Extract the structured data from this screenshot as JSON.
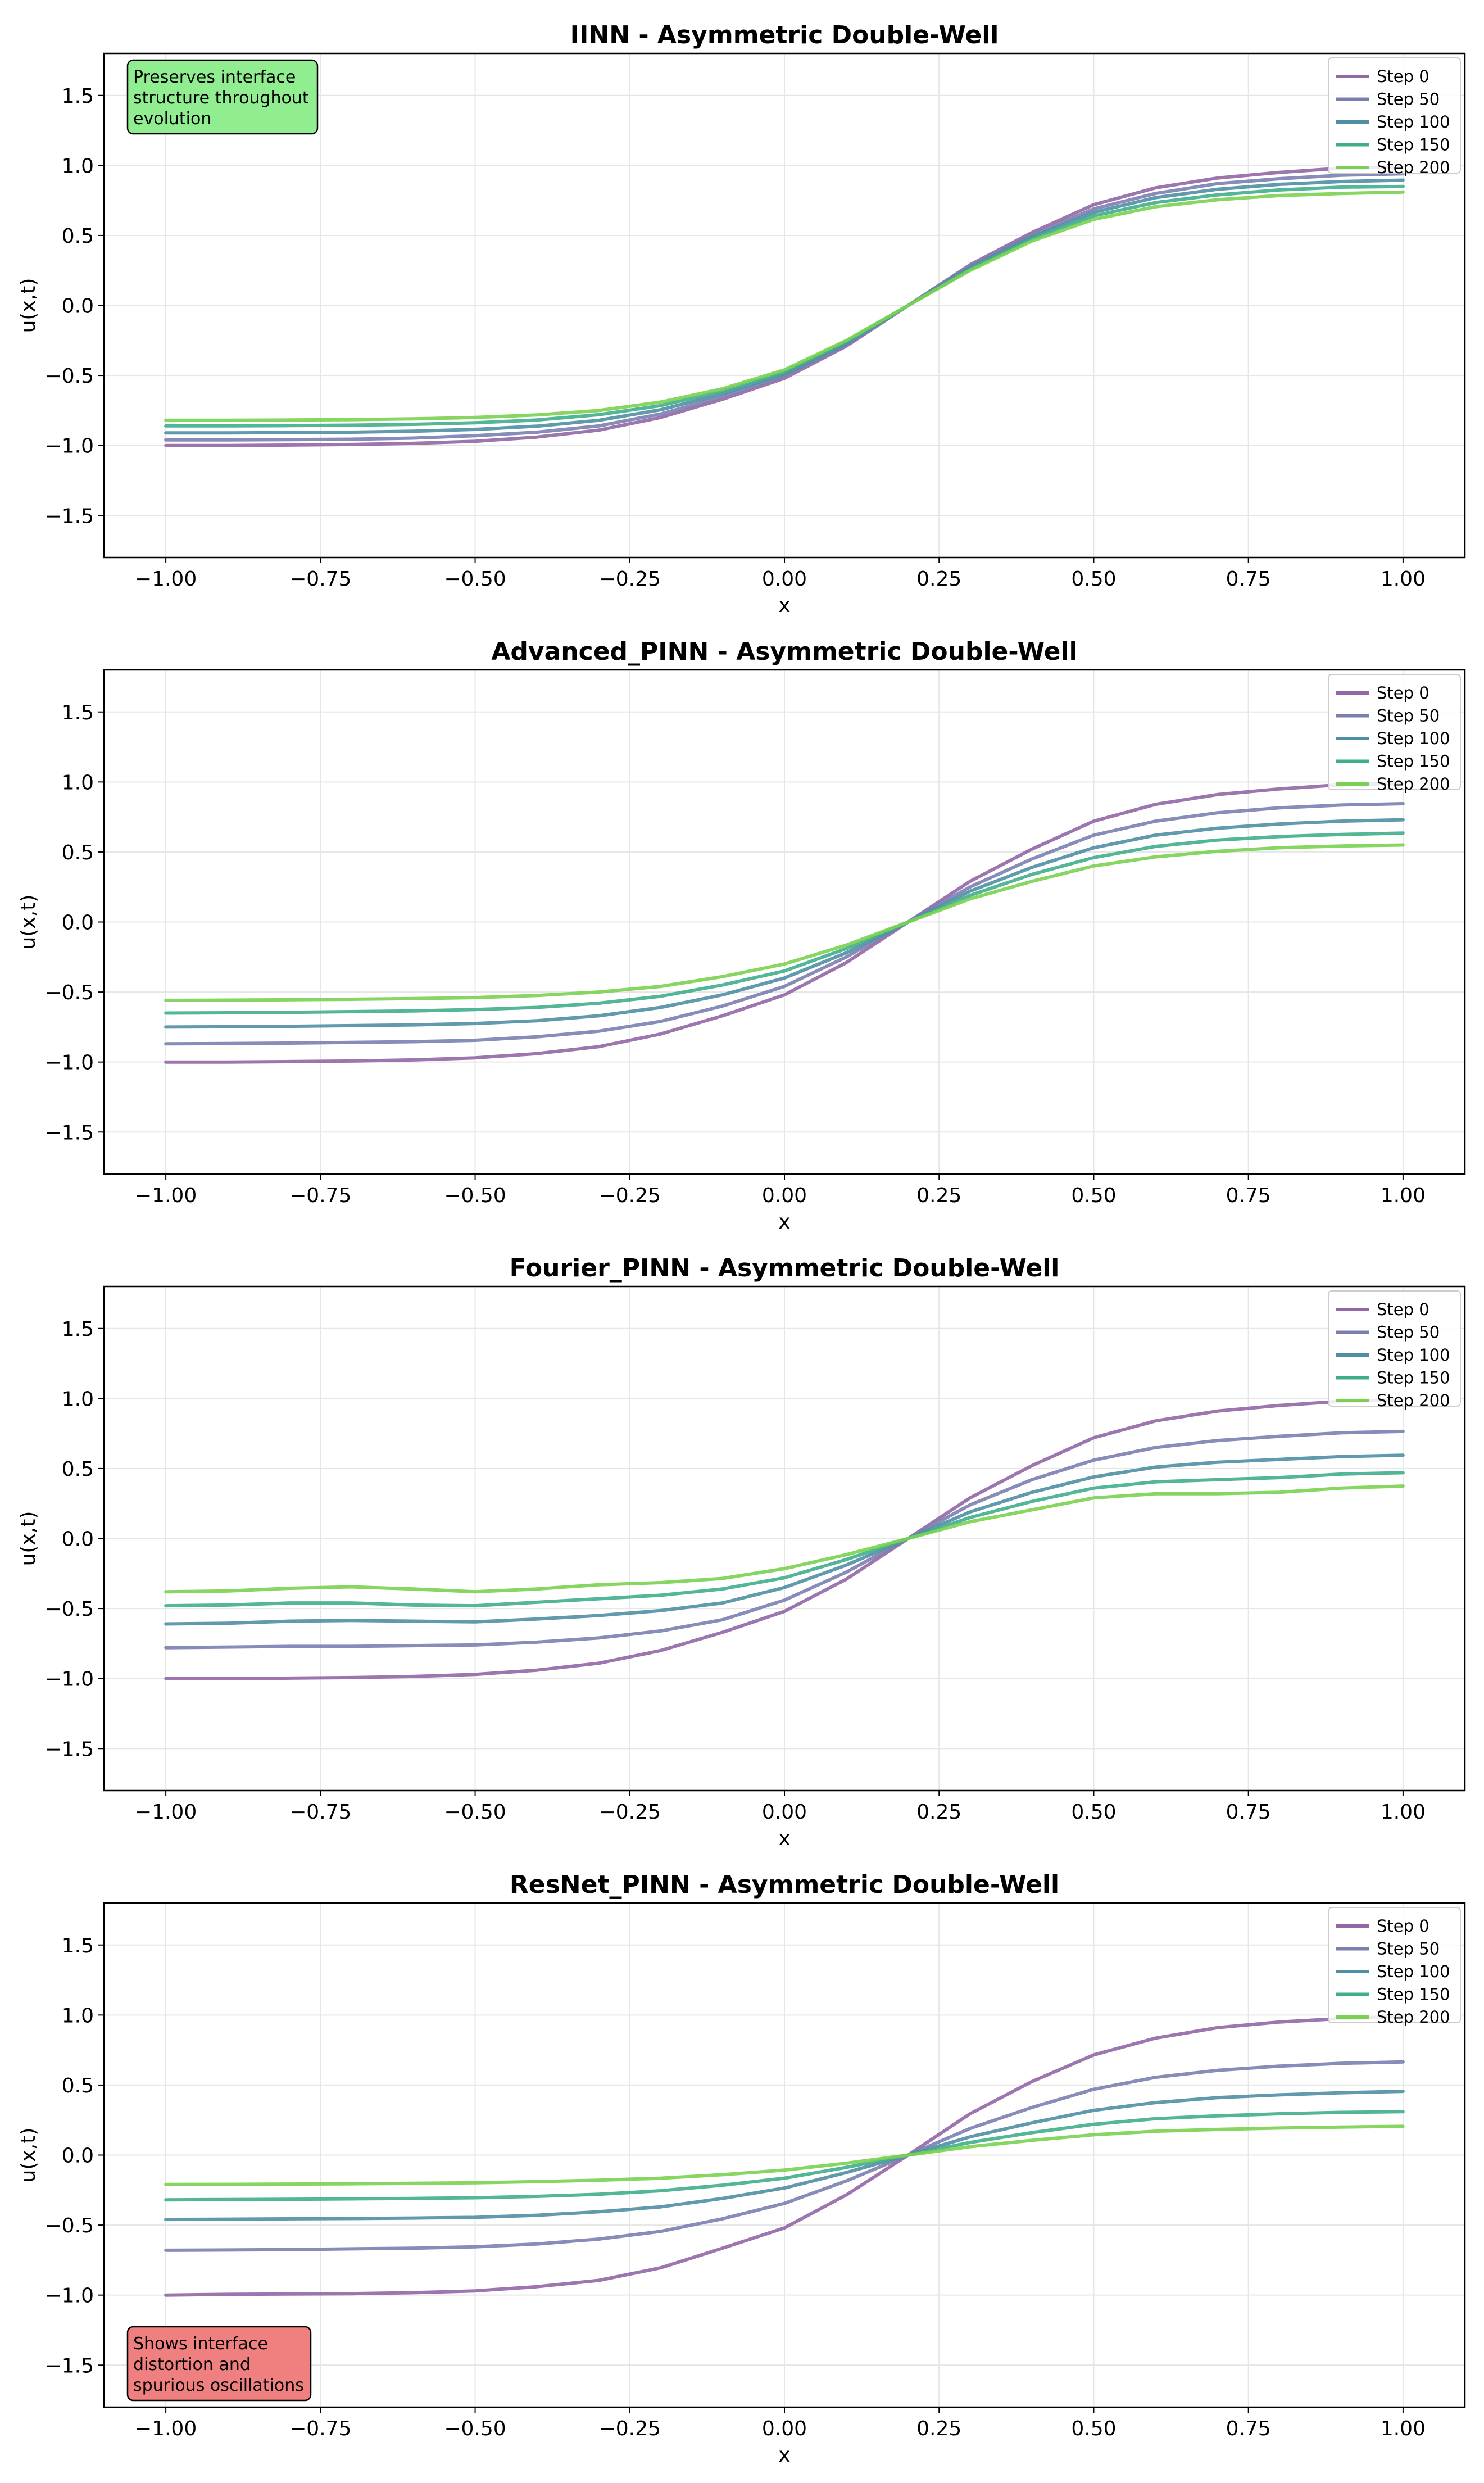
{
  "figure": {
    "style": {
      "background": "#ffffff",
      "grid_color": "#e6e6e6"
    }
  },
  "chart_data": [
    {
      "type": "line",
      "title": "IINN - Asymmetric Double-Well",
      "xlabel": "x",
      "ylabel": "u(x,t)",
      "xlim": [
        -1.1,
        1.1
      ],
      "ylim": [
        -1.8,
        1.8
      ],
      "xticks": [
        -1.0,
        -0.75,
        -0.5,
        -0.25,
        0.0,
        0.25,
        0.5,
        0.75,
        1.0
      ],
      "xtick_labels": [
        "−1.00",
        "−0.75",
        "−0.50",
        "−0.25",
        "0.00",
        "0.25",
        "0.50",
        "0.75",
        "1.00"
      ],
      "yticks": [
        -1.5,
        -1.0,
        -0.5,
        0.0,
        0.5,
        1.0,
        1.5
      ],
      "ytick_labels": [
        "−1.5",
        "−1.0",
        "−0.5",
        "0.0",
        "0.5",
        "1.0",
        "1.5"
      ],
      "grid": true,
      "legend": "top-right",
      "annotation": {
        "text": "Preserves interface\nstructure throughout\nevolution",
        "color": "#90ee90",
        "placement": "top-left"
      },
      "x": [
        -1.0,
        -0.9,
        -0.8,
        -0.7,
        -0.6,
        -0.5,
        -0.4,
        -0.3,
        -0.2,
        -0.1,
        0.0,
        0.1,
        0.2,
        0.3,
        0.4,
        0.5,
        0.6,
        0.7,
        0.8,
        0.9,
        1.0
      ],
      "series": [
        {
          "name": "Step 0",
          "color": "#9467a6",
          "values": [
            -1.0,
            -1.0,
            -0.997,
            -0.993,
            -0.985,
            -0.97,
            -0.94,
            -0.89,
            -0.8,
            -0.67,
            -0.52,
            -0.29,
            0.0,
            0.29,
            0.52,
            0.72,
            0.84,
            0.91,
            0.95,
            0.98,
            0.99
          ]
        },
        {
          "name": "Step 50",
          "color": "#7b7fb0",
          "values": [
            -0.96,
            -0.96,
            -0.958,
            -0.955,
            -0.947,
            -0.93,
            -0.905,
            -0.86,
            -0.775,
            -0.65,
            -0.505,
            -0.28,
            0.0,
            0.28,
            0.5,
            0.69,
            0.8,
            0.87,
            0.905,
            0.93,
            0.94
          ]
        },
        {
          "name": "Step 100",
          "color": "#4f8fa3",
          "values": [
            -0.91,
            -0.91,
            -0.908,
            -0.905,
            -0.898,
            -0.885,
            -0.862,
            -0.82,
            -0.745,
            -0.63,
            -0.49,
            -0.27,
            0.0,
            0.27,
            0.49,
            0.665,
            0.77,
            0.83,
            0.865,
            0.885,
            0.895
          ]
        },
        {
          "name": "Step 150",
          "color": "#3fae8c",
          "values": [
            -0.86,
            -0.86,
            -0.858,
            -0.855,
            -0.849,
            -0.838,
            -0.818,
            -0.78,
            -0.715,
            -0.61,
            -0.475,
            -0.26,
            0.0,
            0.26,
            0.475,
            0.64,
            0.735,
            0.79,
            0.825,
            0.845,
            0.85
          ]
        },
        {
          "name": "Step 200",
          "color": "#7ad151",
          "values": [
            -0.82,
            -0.82,
            -0.818,
            -0.815,
            -0.81,
            -0.8,
            -0.782,
            -0.75,
            -0.69,
            -0.595,
            -0.46,
            -0.25,
            0.0,
            0.25,
            0.46,
            0.615,
            0.705,
            0.755,
            0.785,
            0.8,
            0.81
          ]
        }
      ]
    },
    {
      "type": "line",
      "title": "Advanced_PINN - Asymmetric Double-Well",
      "xlabel": "x",
      "ylabel": "u(x,t)",
      "xlim": [
        -1.1,
        1.1
      ],
      "ylim": [
        -1.8,
        1.8
      ],
      "xticks": [
        -1.0,
        -0.75,
        -0.5,
        -0.25,
        0.0,
        0.25,
        0.5,
        0.75,
        1.0
      ],
      "xtick_labels": [
        "−1.00",
        "−0.75",
        "−0.50",
        "−0.25",
        "0.00",
        "0.25",
        "0.50",
        "0.75",
        "1.00"
      ],
      "yticks": [
        -1.5,
        -1.0,
        -0.5,
        0.0,
        0.5,
        1.0,
        1.5
      ],
      "ytick_labels": [
        "−1.5",
        "−1.0",
        "−0.5",
        "0.0",
        "0.5",
        "1.0",
        "1.5"
      ],
      "grid": true,
      "legend": "top-right",
      "x": [
        -1.0,
        -0.9,
        -0.8,
        -0.7,
        -0.6,
        -0.5,
        -0.4,
        -0.3,
        -0.2,
        -0.1,
        0.0,
        0.1,
        0.2,
        0.3,
        0.4,
        0.5,
        0.6,
        0.7,
        0.8,
        0.9,
        1.0
      ],
      "series": [
        {
          "name": "Step 0",
          "color": "#9467a6",
          "values": [
            -1.0,
            -1.0,
            -0.997,
            -0.993,
            -0.985,
            -0.97,
            -0.94,
            -0.89,
            -0.8,
            -0.67,
            -0.52,
            -0.29,
            0.0,
            0.29,
            0.52,
            0.72,
            0.84,
            0.91,
            0.95,
            0.98,
            0.99
          ]
        },
        {
          "name": "Step 50",
          "color": "#7b7fb0",
          "values": [
            -0.87,
            -0.868,
            -0.865,
            -0.86,
            -0.855,
            -0.845,
            -0.82,
            -0.78,
            -0.71,
            -0.6,
            -0.46,
            -0.25,
            0.0,
            0.25,
            0.45,
            0.62,
            0.72,
            0.78,
            0.815,
            0.835,
            0.845
          ]
        },
        {
          "name": "Step 100",
          "color": "#4f8fa3",
          "values": [
            -0.75,
            -0.748,
            -0.745,
            -0.74,
            -0.735,
            -0.725,
            -0.705,
            -0.67,
            -0.61,
            -0.52,
            -0.4,
            -0.22,
            0.0,
            0.22,
            0.39,
            0.53,
            0.62,
            0.67,
            0.7,
            0.72,
            0.73
          ]
        },
        {
          "name": "Step 150",
          "color": "#3fae8c",
          "values": [
            -0.65,
            -0.648,
            -0.645,
            -0.64,
            -0.635,
            -0.625,
            -0.61,
            -0.58,
            -0.53,
            -0.45,
            -0.35,
            -0.19,
            0.0,
            0.19,
            0.34,
            0.46,
            0.54,
            0.585,
            0.61,
            0.625,
            0.635
          ]
        },
        {
          "name": "Step 200",
          "color": "#7ad151",
          "values": [
            -0.56,
            -0.558,
            -0.555,
            -0.552,
            -0.547,
            -0.54,
            -0.525,
            -0.5,
            -0.46,
            -0.39,
            -0.3,
            -0.165,
            0.0,
            0.165,
            0.29,
            0.4,
            0.465,
            0.505,
            0.53,
            0.543,
            0.55
          ]
        }
      ]
    },
    {
      "type": "line",
      "title": "Fourier_PINN - Asymmetric Double-Well",
      "xlabel": "x",
      "ylabel": "u(x,t)",
      "xlim": [
        -1.1,
        1.1
      ],
      "ylim": [
        -1.8,
        1.8
      ],
      "xticks": [
        -1.0,
        -0.75,
        -0.5,
        -0.25,
        0.0,
        0.25,
        0.5,
        0.75,
        1.0
      ],
      "xtick_labels": [
        "−1.00",
        "−0.75",
        "−0.50",
        "−0.25",
        "0.00",
        "0.25",
        "0.50",
        "0.75",
        "1.00"
      ],
      "yticks": [
        -1.5,
        -1.0,
        -0.5,
        0.0,
        0.5,
        1.0,
        1.5
      ],
      "ytick_labels": [
        "−1.5",
        "−1.0",
        "−0.5",
        "0.0",
        "0.5",
        "1.0",
        "1.5"
      ],
      "grid": true,
      "legend": "top-right",
      "x": [
        -1.0,
        -0.9,
        -0.8,
        -0.7,
        -0.6,
        -0.5,
        -0.4,
        -0.3,
        -0.2,
        -0.1,
        0.0,
        0.1,
        0.2,
        0.3,
        0.4,
        0.5,
        0.6,
        0.7,
        0.8,
        0.9,
        1.0
      ],
      "series": [
        {
          "name": "Step 0",
          "color": "#9467a6",
          "values": [
            -1.0,
            -1.0,
            -0.997,
            -0.993,
            -0.985,
            -0.97,
            -0.94,
            -0.89,
            -0.8,
            -0.67,
            -0.52,
            -0.29,
            0.0,
            0.29,
            0.52,
            0.72,
            0.84,
            0.91,
            0.95,
            0.98,
            0.99
          ]
        },
        {
          "name": "Step 50",
          "color": "#7b7fb0",
          "values": [
            -0.78,
            -0.775,
            -0.77,
            -0.77,
            -0.765,
            -0.76,
            -0.74,
            -0.71,
            -0.66,
            -0.58,
            -0.44,
            -0.24,
            0.0,
            0.24,
            0.42,
            0.56,
            0.65,
            0.7,
            0.73,
            0.755,
            0.765
          ]
        },
        {
          "name": "Step 100",
          "color": "#4f8fa3",
          "values": [
            -0.61,
            -0.605,
            -0.59,
            -0.585,
            -0.59,
            -0.595,
            -0.575,
            -0.55,
            -0.515,
            -0.46,
            -0.35,
            -0.19,
            0.0,
            0.19,
            0.33,
            0.44,
            0.51,
            0.545,
            0.565,
            0.585,
            0.595
          ]
        },
        {
          "name": "Step 150",
          "color": "#3fae8c",
          "values": [
            -0.48,
            -0.475,
            -0.46,
            -0.46,
            -0.475,
            -0.48,
            -0.455,
            -0.43,
            -0.405,
            -0.36,
            -0.28,
            -0.15,
            0.0,
            0.15,
            0.265,
            0.36,
            0.405,
            0.42,
            0.435,
            0.46,
            0.47
          ]
        },
        {
          "name": "Step 200",
          "color": "#7ad151",
          "values": [
            -0.38,
            -0.375,
            -0.355,
            -0.345,
            -0.36,
            -0.38,
            -0.36,
            -0.33,
            -0.315,
            -0.285,
            -0.215,
            -0.115,
            0.0,
            0.12,
            0.205,
            0.29,
            0.32,
            0.32,
            0.33,
            0.36,
            0.375
          ]
        }
      ]
    },
    {
      "type": "line",
      "title": "ResNet_PINN - Asymmetric Double-Well",
      "xlabel": "x",
      "ylabel": "u(x,t)",
      "xlim": [
        -1.1,
        1.1
      ],
      "ylim": [
        -1.8,
        1.8
      ],
      "xticks": [
        -1.0,
        -0.75,
        -0.5,
        -0.25,
        0.0,
        0.25,
        0.5,
        0.75,
        1.0
      ],
      "xtick_labels": [
        "−1.00",
        "−0.75",
        "−0.50",
        "−0.25",
        "0.00",
        "0.25",
        "0.50",
        "0.75",
        "1.00"
      ],
      "yticks": [
        -1.5,
        -1.0,
        -0.5,
        0.0,
        0.5,
        1.0,
        1.5
      ],
      "ytick_labels": [
        "−1.5",
        "−1.0",
        "−0.5",
        "0.0",
        "0.5",
        "1.0",
        "1.5"
      ],
      "grid": true,
      "legend": "top-right",
      "annotation": {
        "text": "Shows interface\ndistortion and\nspurious oscillations",
        "color": "#f08080",
        "placement": "bottom-left"
      },
      "x": [
        -1.0,
        -0.9,
        -0.8,
        -0.7,
        -0.6,
        -0.5,
        -0.4,
        -0.3,
        -0.2,
        -0.1,
        0.0,
        0.1,
        0.2,
        0.3,
        0.4,
        0.5,
        0.6,
        0.7,
        0.8,
        0.9,
        1.0
      ],
      "series": [
        {
          "name": "Step 0",
          "color": "#9467a6",
          "values": [
            -1.0,
            -0.995,
            -0.992,
            -0.99,
            -0.983,
            -0.97,
            -0.94,
            -0.895,
            -0.805,
            -0.665,
            -0.52,
            -0.285,
            0.0,
            0.295,
            0.525,
            0.715,
            0.835,
            0.91,
            0.95,
            0.975,
            0.99
          ]
        },
        {
          "name": "Step 50",
          "color": "#7b7fb0",
          "values": [
            -0.68,
            -0.678,
            -0.675,
            -0.67,
            -0.665,
            -0.655,
            -0.635,
            -0.6,
            -0.545,
            -0.455,
            -0.345,
            -0.185,
            0.0,
            0.19,
            0.34,
            0.47,
            0.555,
            0.605,
            0.635,
            0.655,
            0.665
          ]
        },
        {
          "name": "Step 100",
          "color": "#4f8fa3",
          "values": [
            -0.46,
            -0.458,
            -0.455,
            -0.453,
            -0.45,
            -0.445,
            -0.43,
            -0.405,
            -0.37,
            -0.31,
            -0.235,
            -0.125,
            0.0,
            0.13,
            0.23,
            0.32,
            0.375,
            0.41,
            0.43,
            0.445,
            0.455
          ]
        },
        {
          "name": "Step 150",
          "color": "#3fae8c",
          "values": [
            -0.32,
            -0.318,
            -0.316,
            -0.313,
            -0.31,
            -0.305,
            -0.295,
            -0.28,
            -0.255,
            -0.215,
            -0.165,
            -0.088,
            0.0,
            0.09,
            0.16,
            0.22,
            0.26,
            0.28,
            0.295,
            0.305,
            0.31
          ]
        },
        {
          "name": "Step 200",
          "color": "#7ad151",
          "values": [
            -0.21,
            -0.209,
            -0.207,
            -0.205,
            -0.202,
            -0.198,
            -0.19,
            -0.18,
            -0.165,
            -0.14,
            -0.107,
            -0.058,
            0.0,
            0.06,
            0.105,
            0.145,
            0.17,
            0.183,
            0.193,
            0.2,
            0.205
          ]
        }
      ]
    }
  ]
}
